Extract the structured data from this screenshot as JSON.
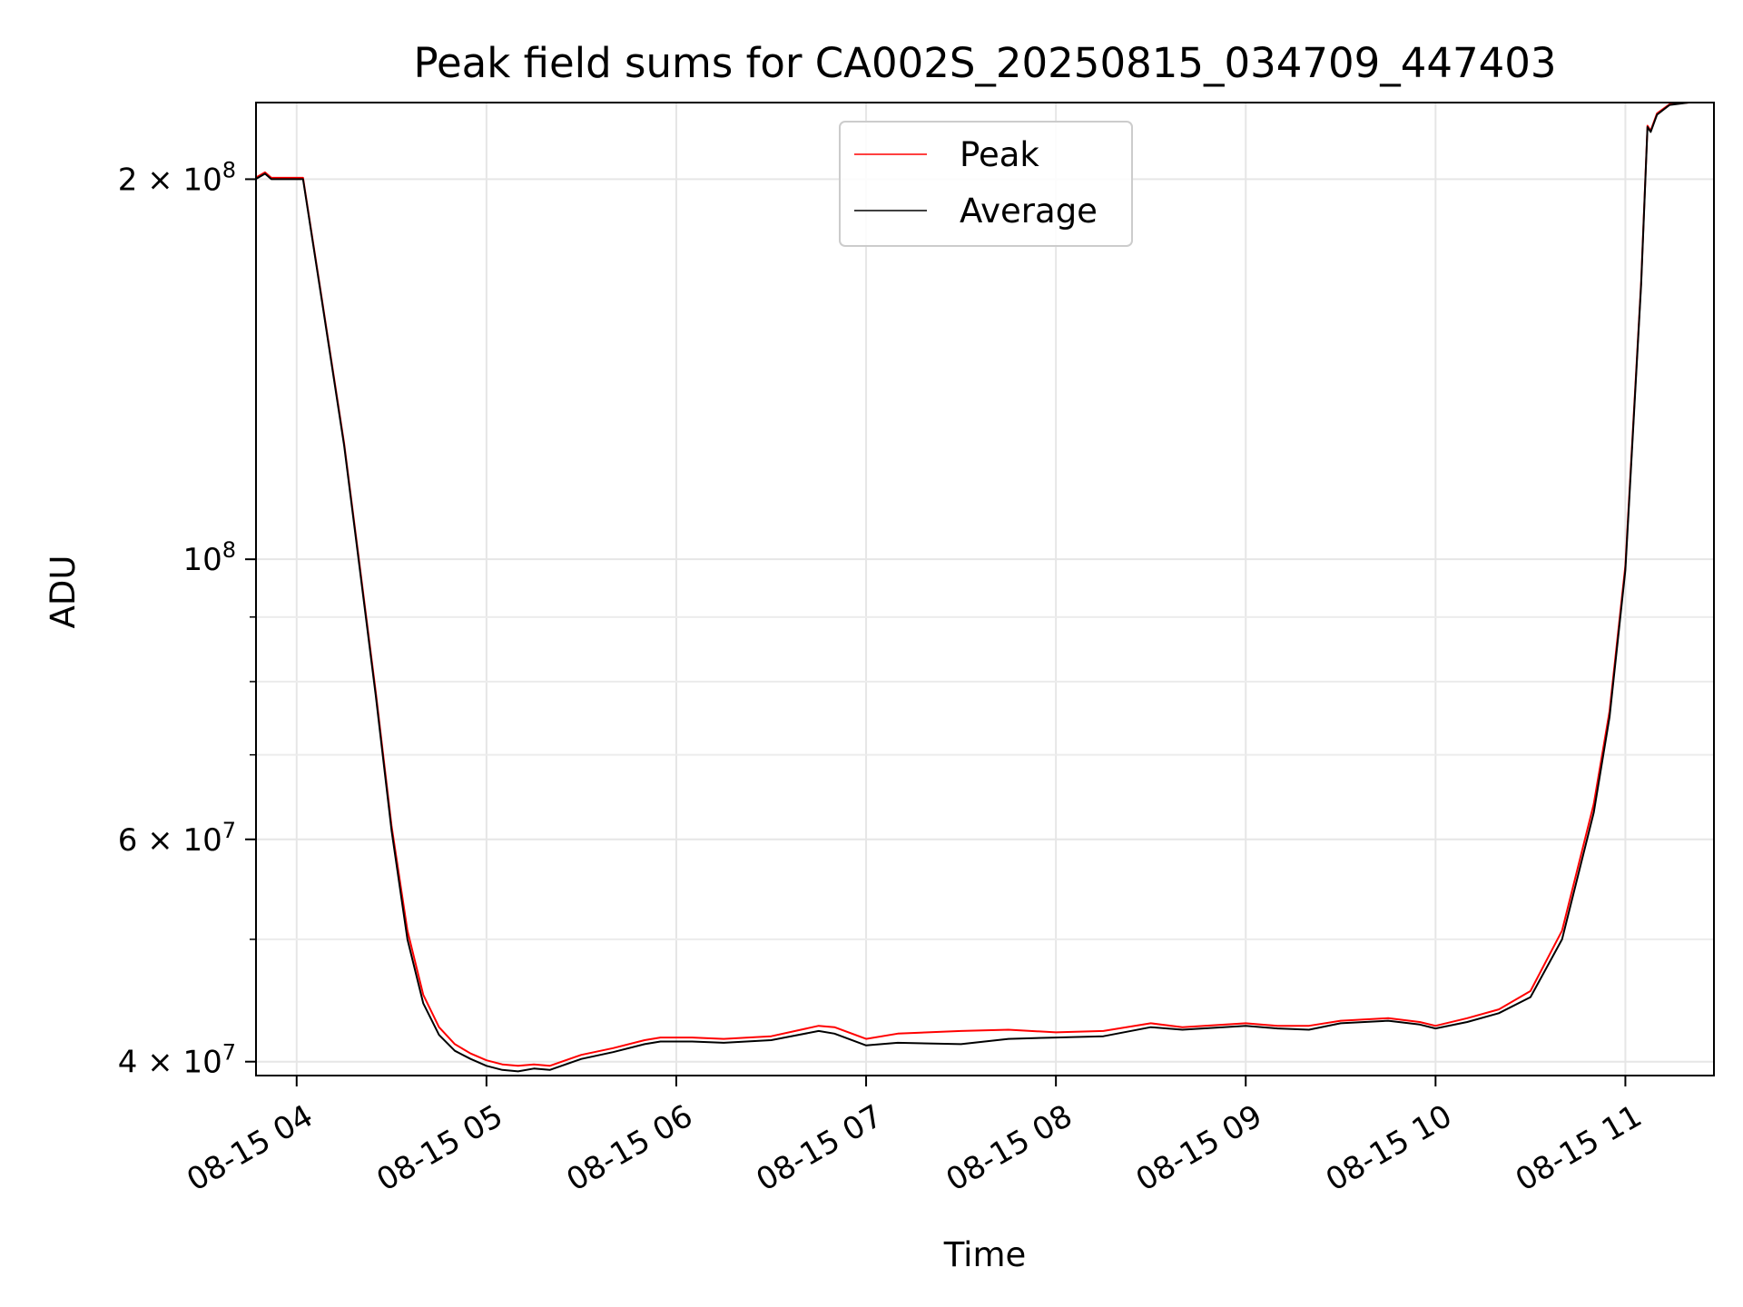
{
  "chart_data": {
    "type": "line",
    "title": "Peak field sums for CA002S_20250815_034709_447403",
    "xlabel": "Time",
    "ylabel": "ADU",
    "y_scale": "log",
    "ylim": [
      39000000,
      230000000
    ],
    "xlim": [
      "2025-08-15 03:47:09",
      "2025-08-15 11:28:00"
    ],
    "grid": true,
    "legend_position": "upper center",
    "x_ticks": [
      {
        "label": "08-15 04",
        "value": "2025-08-15 04:00"
      },
      {
        "label": "08-15 05",
        "value": "2025-08-15 05:00"
      },
      {
        "label": "08-15 06",
        "value": "2025-08-15 06:00"
      },
      {
        "label": "08-15 07",
        "value": "2025-08-15 07:00"
      },
      {
        "label": "08-15 08",
        "value": "2025-08-15 08:00"
      },
      {
        "label": "08-15 09",
        "value": "2025-08-15 09:00"
      },
      {
        "label": "08-15 10",
        "value": "2025-08-15 10:00"
      },
      {
        "label": "08-15 11",
        "value": "2025-08-15 11:00"
      }
    ],
    "y_ticks": [
      {
        "mantissa": "4",
        "exponent": "7",
        "value": 40000000
      },
      {
        "mantissa": "6",
        "exponent": "7",
        "value": 60000000
      },
      {
        "mantissa": "",
        "exponent": "8",
        "value": 100000000
      },
      {
        "mantissa": "2",
        "exponent": "8",
        "value": 200000000
      }
    ],
    "y_minor_ticks": [
      50000000,
      70000000,
      80000000,
      90000000
    ],
    "series": [
      {
        "name": "Average",
        "color": "#000000",
        "x": [
          "2025-08-15 03:47",
          "2025-08-15 03:50",
          "2025-08-15 03:52",
          "2025-08-15 03:57",
          "2025-08-15 04:02",
          "2025-08-15 04:08",
          "2025-08-15 04:15",
          "2025-08-15 04:20",
          "2025-08-15 04:25",
          "2025-08-15 04:30",
          "2025-08-15 04:35",
          "2025-08-15 04:40",
          "2025-08-15 04:45",
          "2025-08-15 04:50",
          "2025-08-15 04:55",
          "2025-08-15 05:00",
          "2025-08-15 05:05",
          "2025-08-15 05:10",
          "2025-08-15 05:15",
          "2025-08-15 05:20",
          "2025-08-15 05:30",
          "2025-08-15 05:40",
          "2025-08-15 05:50",
          "2025-08-15 05:55",
          "2025-08-15 06:05",
          "2025-08-15 06:15",
          "2025-08-15 06:30",
          "2025-08-15 06:45",
          "2025-08-15 06:50",
          "2025-08-15 07:00",
          "2025-08-15 07:10",
          "2025-08-15 07:30",
          "2025-08-15 07:45",
          "2025-08-15 08:00",
          "2025-08-15 08:15",
          "2025-08-15 08:30",
          "2025-08-15 08:40",
          "2025-08-15 09:00",
          "2025-08-15 09:10",
          "2025-08-15 09:20",
          "2025-08-15 09:30",
          "2025-08-15 09:45",
          "2025-08-15 09:55",
          "2025-08-15 10:00",
          "2025-08-15 10:10",
          "2025-08-15 10:20",
          "2025-08-15 10:30",
          "2025-08-15 10:40",
          "2025-08-15 10:50",
          "2025-08-15 10:55",
          "2025-08-15 11:00",
          "2025-08-15 11:05",
          "2025-08-15 11:07",
          "2025-08-15 11:08",
          "2025-08-15 11:10",
          "2025-08-15 11:14",
          "2025-08-15 11:20",
          "2025-08-15 11:28"
        ],
        "y": [
          200000000,
          202000000,
          200000000,
          200000000,
          200000000,
          160000000,
          123000000,
          98000000,
          78000000,
          61000000,
          50000000,
          44500000,
          42000000,
          40800000,
          40200000,
          39700000,
          39400000,
          39300000,
          39500000,
          39400000,
          40200000,
          40700000,
          41300000,
          41500000,
          41500000,
          41400000,
          41600000,
          42300000,
          42100000,
          41200000,
          41400000,
          41300000,
          41700000,
          41800000,
          41900000,
          42600000,
          42400000,
          42700000,
          42500000,
          42400000,
          42900000,
          43100000,
          42800000,
          42500000,
          43000000,
          43700000,
          45000000,
          50000000,
          63000000,
          75000000,
          98000000,
          165000000,
          220000000,
          218000000,
          225000000,
          229000000,
          230000000,
          230000000
        ]
      },
      {
        "name": "Peak",
        "color": "#ff0000",
        "x": [
          "2025-08-15 03:47",
          "2025-08-15 03:50",
          "2025-08-15 03:52",
          "2025-08-15 03:57",
          "2025-08-15 04:02",
          "2025-08-15 04:08",
          "2025-08-15 04:15",
          "2025-08-15 04:20",
          "2025-08-15 04:25",
          "2025-08-15 04:30",
          "2025-08-15 04:35",
          "2025-08-15 04:40",
          "2025-08-15 04:45",
          "2025-08-15 04:50",
          "2025-08-15 04:55",
          "2025-08-15 05:00",
          "2025-08-15 05:05",
          "2025-08-15 05:10",
          "2025-08-15 05:15",
          "2025-08-15 05:20",
          "2025-08-15 05:30",
          "2025-08-15 05:40",
          "2025-08-15 05:50",
          "2025-08-15 05:55",
          "2025-08-15 06:05",
          "2025-08-15 06:15",
          "2025-08-15 06:30",
          "2025-08-15 06:45",
          "2025-08-15 06:50",
          "2025-08-15 07:00",
          "2025-08-15 07:10",
          "2025-08-15 07:30",
          "2025-08-15 07:45",
          "2025-08-15 08:00",
          "2025-08-15 08:15",
          "2025-08-15 08:30",
          "2025-08-15 08:40",
          "2025-08-15 09:00",
          "2025-08-15 09:10",
          "2025-08-15 09:20",
          "2025-08-15 09:30",
          "2025-08-15 09:45",
          "2025-08-15 09:55",
          "2025-08-15 10:00",
          "2025-08-15 10:10",
          "2025-08-15 10:20",
          "2025-08-15 10:30",
          "2025-08-15 10:40",
          "2025-08-15 10:50",
          "2025-08-15 10:55",
          "2025-08-15 11:00",
          "2025-08-15 11:05",
          "2025-08-15 11:07",
          "2025-08-15 11:08",
          "2025-08-15 11:10",
          "2025-08-15 11:14",
          "2025-08-15 11:20",
          "2025-08-15 11:28"
        ],
        "y": [
          200500000,
          202500000,
          200500000,
          200500000,
          200500000,
          160500000,
          123500000,
          98500000,
          78500000,
          61500000,
          50800000,
          45200000,
          42600000,
          41300000,
          40600000,
          40100000,
          39800000,
          39700000,
          39800000,
          39700000,
          40500000,
          41000000,
          41600000,
          41800000,
          41800000,
          41700000,
          41900000,
          42700000,
          42600000,
          41700000,
          42100000,
          42300000,
          42400000,
          42200000,
          42300000,
          42900000,
          42600000,
          42900000,
          42700000,
          42700000,
          43100000,
          43300000,
          43000000,
          42700000,
          43300000,
          44000000,
          45500000,
          50800000,
          64000000,
          75800000,
          98800000,
          165800000,
          220500000,
          218500000,
          225500000,
          229300000,
          230000000,
          230000000
        ]
      }
    ]
  }
}
